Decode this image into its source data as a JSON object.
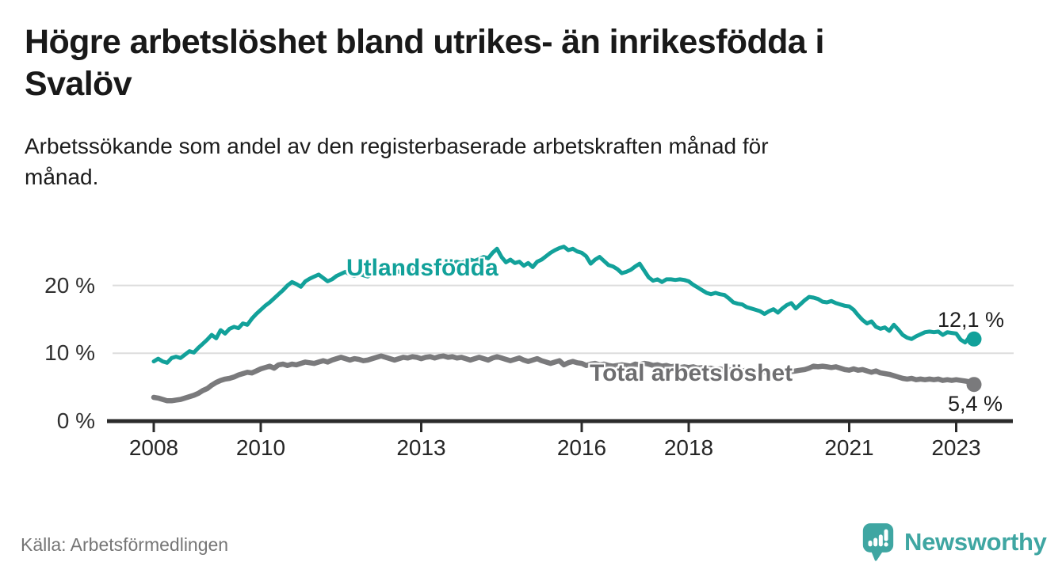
{
  "header": {
    "title_lines": [
      "Högre arbetslöshet bland utrikes- än inrikesfödda i",
      "Svalöv"
    ],
    "subtitle_lines": [
      "Arbetssökande som andel av den registerbaserade arbetskraften månad för",
      "månad."
    ]
  },
  "footer": {
    "source": "Källa: Arbetsförmedlingen",
    "brand": "Newsworthy",
    "brand_icon": "newsworthy-speech-bubble-bar-chart-icon"
  },
  "colors": {
    "foreign_born_line": "#12A19A",
    "total_line": "#7A7A7C",
    "total_label": "#6E6E70",
    "grid": "#DDDDDD",
    "axis": "#2B2B2B",
    "text": "#1A1A1A",
    "muted": "#767676",
    "brand_teal": "#3FA6A2"
  },
  "chart_data": {
    "type": "line",
    "unit": "%",
    "frequency": "monthly",
    "x_start": "2008-01",
    "x_end": "2023-05",
    "grid": "horizontal-only",
    "ylim": [
      0,
      27
    ],
    "x_ticks": [
      {
        "year": 2008,
        "label": "2008"
      },
      {
        "year": 2010,
        "label": "2010"
      },
      {
        "year": 2013,
        "label": "2013"
      },
      {
        "year": 2016,
        "label": "2016"
      },
      {
        "year": 2018,
        "label": "2018"
      },
      {
        "year": 2021,
        "label": "2021"
      },
      {
        "year": 2023,
        "label": "2023"
      }
    ],
    "y_ticks": [
      {
        "value": 0,
        "label": "0 %"
      },
      {
        "value": 10,
        "label": "10 %"
      },
      {
        "value": 20,
        "label": "20 %"
      }
    ],
    "series": [
      {
        "name": "Utlandsfödda",
        "color": "#12A19A",
        "end_value": 12.1,
        "end_label": "12,1 %",
        "values": [
          8.8,
          9.2,
          8.8,
          8.6,
          9.3,
          9.5,
          9.3,
          9.8,
          10.3,
          10.1,
          10.8,
          11.4,
          12.0,
          12.7,
          12.2,
          13.4,
          12.9,
          13.6,
          13.9,
          13.7,
          14.4,
          14.2,
          15.1,
          15.8,
          16.4,
          17.0,
          17.5,
          18.1,
          18.7,
          19.3,
          20.0,
          20.5,
          20.2,
          19.8,
          20.6,
          21.0,
          21.3,
          21.6,
          21.1,
          20.6,
          20.9,
          21.4,
          21.7,
          22.0,
          21.6,
          21.4,
          21.7,
          21.5,
          21.3,
          21.7,
          22.0,
          21.8,
          22.1,
          22.4,
          22.2,
          22.0,
          22.3,
          22.1,
          22.4,
          22.3,
          22.4,
          22.6,
          22.9,
          22.7,
          23.0,
          23.2,
          23.0,
          23.3,
          23.5,
          23.3,
          23.6,
          23.8,
          23.6,
          23.9,
          24.2,
          24.0,
          24.8,
          25.4,
          24.2,
          23.4,
          23.8,
          23.3,
          23.5,
          22.9,
          23.3,
          22.7,
          23.5,
          23.8,
          24.3,
          24.8,
          25.2,
          25.5,
          25.7,
          25.2,
          25.4,
          25.0,
          24.8,
          24.3,
          23.2,
          23.8,
          24.2,
          23.6,
          23.0,
          22.8,
          22.4,
          21.8,
          22.0,
          22.3,
          22.8,
          23.2,
          22.2,
          21.2,
          20.7,
          20.9,
          20.5,
          20.9,
          20.9,
          20.8,
          20.9,
          20.8,
          20.6,
          20.1,
          19.7,
          19.3,
          18.9,
          18.7,
          18.9,
          18.7,
          18.6,
          18.1,
          17.5,
          17.3,
          17.2,
          16.8,
          16.6,
          16.4,
          16.2,
          15.8,
          16.2,
          16.5,
          16.0,
          16.6,
          17.1,
          17.4,
          16.6,
          17.2,
          17.8,
          18.3,
          18.2,
          18.0,
          17.6,
          17.5,
          17.7,
          17.4,
          17.2,
          17.0,
          16.9,
          16.4,
          15.6,
          14.9,
          14.4,
          14.7,
          13.9,
          13.6,
          13.8,
          13.3,
          14.2,
          13.5,
          12.7,
          12.3,
          12.1,
          12.5,
          12.8,
          13.1,
          13.2,
          13.1,
          13.2,
          12.7,
          13.1,
          13.0,
          12.9,
          12.0,
          11.6,
          12.4,
          12.1
        ]
      },
      {
        "name": "Total arbetslöshet",
        "color": "#7A7A7C",
        "end_value": 5.4,
        "end_label": "5,4 %",
        "values": [
          3.5,
          3.4,
          3.2,
          3.0,
          3.0,
          3.1,
          3.2,
          3.4,
          3.6,
          3.8,
          4.1,
          4.5,
          4.8,
          5.3,
          5.7,
          6.0,
          6.2,
          6.3,
          6.5,
          6.8,
          7.0,
          7.2,
          7.1,
          7.4,
          7.7,
          7.9,
          8.1,
          7.8,
          8.3,
          8.4,
          8.2,
          8.4,
          8.3,
          8.5,
          8.7,
          8.6,
          8.5,
          8.7,
          8.9,
          8.7,
          9.0,
          9.2,
          9.4,
          9.2,
          9.0,
          9.2,
          9.1,
          8.9,
          9.0,
          9.2,
          9.4,
          9.6,
          9.4,
          9.2,
          9.0,
          9.2,
          9.4,
          9.3,
          9.5,
          9.4,
          9.2,
          9.4,
          9.5,
          9.3,
          9.5,
          9.6,
          9.4,
          9.5,
          9.3,
          9.4,
          9.2,
          9.0,
          9.2,
          9.4,
          9.2,
          9.0,
          9.3,
          9.5,
          9.3,
          9.1,
          8.9,
          9.1,
          9.3,
          9.0,
          8.8,
          9.0,
          9.2,
          8.9,
          8.7,
          8.5,
          8.7,
          8.9,
          8.3,
          8.6,
          8.8,
          8.6,
          8.5,
          8.2,
          8.4,
          8.5,
          8.3,
          8.4,
          8.2,
          8.1,
          8.2,
          8.3,
          8.2,
          8.1,
          8.4,
          8.3,
          8.5,
          8.4,
          8.2,
          8.3,
          8.1,
          8.2,
          8.0,
          8.1,
          7.9,
          8.0,
          7.9,
          8.0,
          7.8,
          7.9,
          7.7,
          7.8,
          7.6,
          7.7,
          7.5,
          7.6,
          7.4,
          7.5,
          7.4,
          7.5,
          7.3,
          7.4,
          7.2,
          7.3,
          7.1,
          7.2,
          7.0,
          7.1,
          7.2,
          7.3,
          7.4,
          7.5,
          7.6,
          7.8,
          8.1,
          8.0,
          8.1,
          8.0,
          7.9,
          8.0,
          7.8,
          7.6,
          7.5,
          7.7,
          7.5,
          7.6,
          7.4,
          7.2,
          7.4,
          7.1,
          7.0,
          6.9,
          6.7,
          6.5,
          6.3,
          6.2,
          6.3,
          6.1,
          6.2,
          6.1,
          6.2,
          6.1,
          6.2,
          6.0,
          6.1,
          6.0,
          6.1,
          6.0,
          5.9,
          5.8,
          5.4
        ]
      }
    ]
  }
}
